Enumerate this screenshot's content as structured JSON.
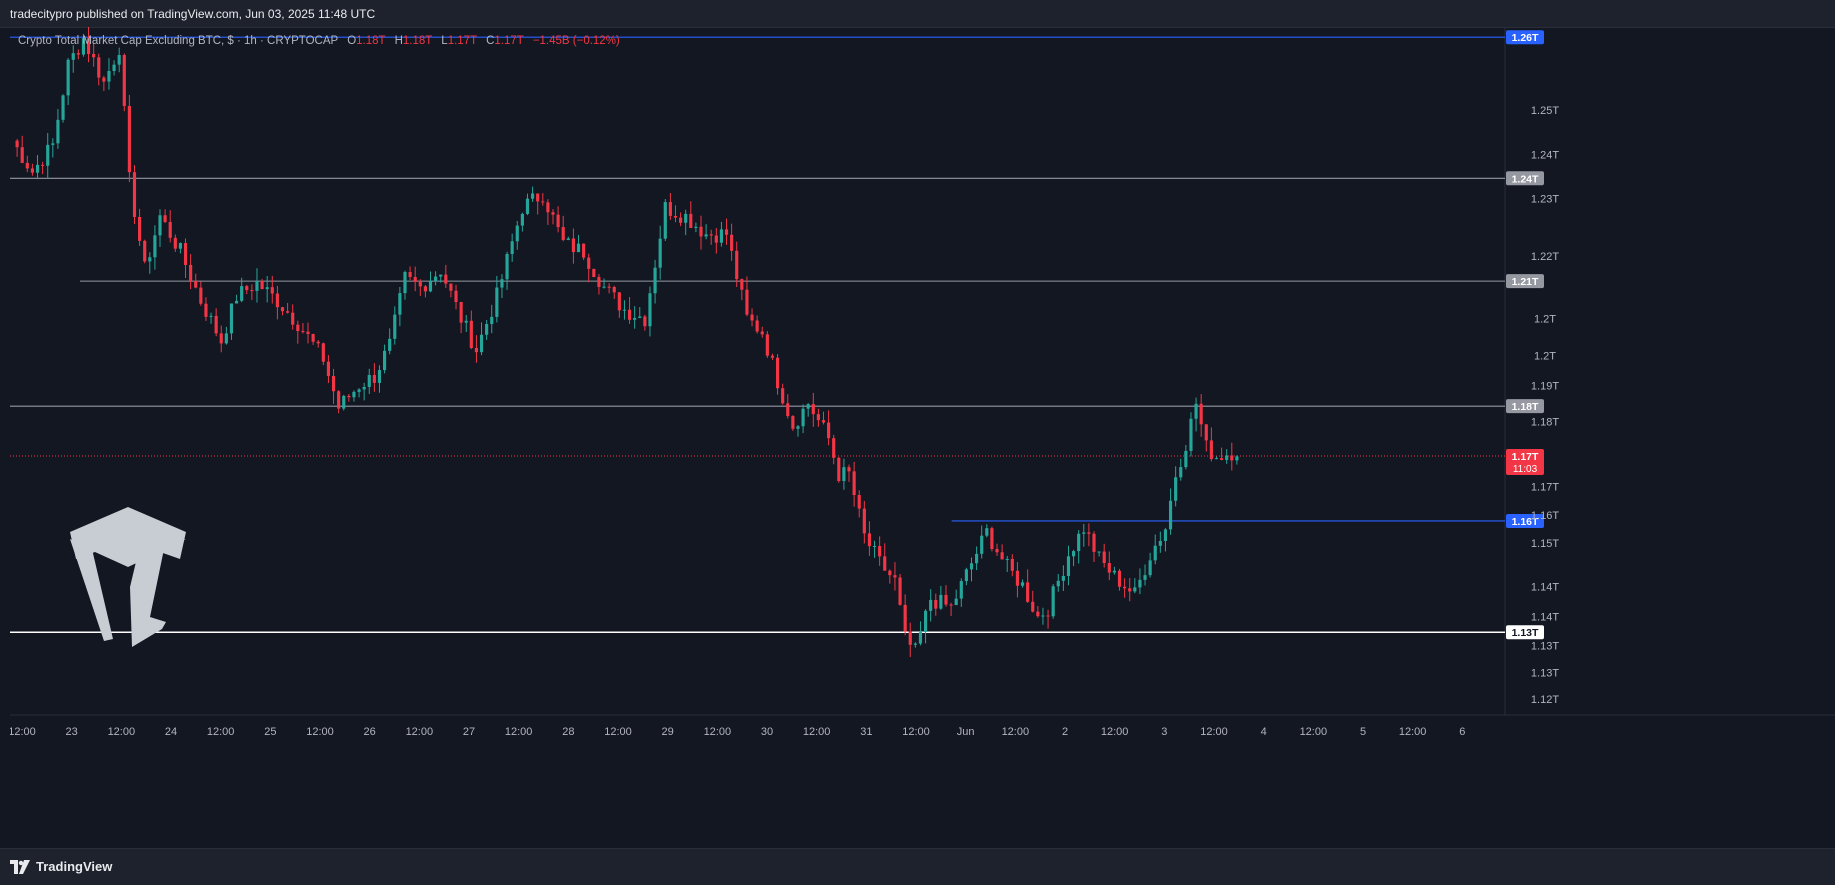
{
  "header": {
    "published": "tradecitypro published on TradingView.com, Jun 03, 2025 11:48 UTC"
  },
  "legend": {
    "symbol": "Crypto Total Market Cap Excluding BTC, $ · 1h · CRYPTOCAP",
    "o_label": "O",
    "o": "1.18T",
    "h_label": "H",
    "h": "1.18T",
    "l_label": "L",
    "l": "1.17T",
    "c_label": "C",
    "c": "1.17T",
    "change": "−1.45B (−0.12%)"
  },
  "footer": {
    "brand": "TradingView"
  },
  "colors": {
    "background": "#131722",
    "up": "#26a69a",
    "down": "#f23645",
    "blue_line": "#2962ff",
    "gray_line": "#9598a1",
    "white_line": "#ffffff"
  },
  "chart_data": {
    "type": "candlestick",
    "title": "Crypto Total Market Cap Excluding BTC, $ · 1h · CRYPTOCAP",
    "ylim": [
      1.1195,
      1.2705
    ],
    "y_ticks": [
      {
        "v": 1.2518,
        "label": "1.25T"
      },
      {
        "v": 1.2419,
        "label": "1.24T"
      },
      {
        "v": 1.232,
        "label": "1.23T"
      },
      {
        "v": 1.219,
        "label": "1.22T"
      },
      {
        "v": 1.205,
        "label": "1.2T"
      },
      {
        "v": 1.1967,
        "label": "1.2T"
      },
      {
        "v": 1.19,
        "label": "1.19T"
      },
      {
        "v": 1.1818,
        "label": "1.18T"
      },
      {
        "v": 1.1673,
        "label": "1.17T"
      },
      {
        "v": 1.1608,
        "label": "1.16T"
      },
      {
        "v": 1.1545,
        "label": "1.15T"
      },
      {
        "v": 1.1448,
        "label": "1.14T"
      },
      {
        "v": 1.138,
        "label": "1.14T"
      },
      {
        "v": 1.1315,
        "label": "1.13T"
      },
      {
        "v": 1.1255,
        "label": "1.13T"
      },
      {
        "v": 1.1195,
        "label": "1.12T"
      }
    ],
    "x_ticks": [
      "12:00",
      "23",
      "12:00",
      "24",
      "12:00",
      "25",
      "12:00",
      "26",
      "12:00",
      "27",
      "12:00",
      "28",
      "12:00",
      "29",
      "12:00",
      "30",
      "12:00",
      "31",
      "12:00",
      "Jun",
      "12:00",
      "2",
      "12:00",
      "3",
      "12:00",
      "4",
      "12:00",
      "5",
      "12:00",
      "6"
    ],
    "horizontal_lines": [
      {
        "price": 1.2682,
        "label": "1.26T",
        "color": "#2962ff",
        "start_frac": 0
      },
      {
        "price": 1.2365,
        "label": "1.24T",
        "color": "#9598a1",
        "start_frac": 0
      },
      {
        "price": 1.2134,
        "label": "1.21T",
        "color": "#9598a1",
        "start_frac": 0.047
      },
      {
        "price": 1.1853,
        "label": "1.18T",
        "color": "#9598a1",
        "start_frac": 0
      },
      {
        "price": 1.1595,
        "label": "1.16T",
        "color": "#2962ff",
        "start_frac": 0.632
      },
      {
        "price": 1.1345,
        "label": "1.13T",
        "color": "#ffffff",
        "start_frac": 0
      }
    ],
    "current_price": {
      "price": 1.1741,
      "label": "1.17T",
      "countdown": "11:03",
      "color": "#f23645"
    },
    "path": [
      [
        0,
        1.245
      ],
      [
        4,
        1.238
      ],
      [
        8,
        1.244
      ],
      [
        11,
        1.262
      ],
      [
        14,
        1.268
      ],
      [
        18,
        1.258
      ],
      [
        21,
        1.266
      ],
      [
        23,
        1.236
      ],
      [
        26,
        1.216
      ],
      [
        29,
        1.228
      ],
      [
        33,
        1.22
      ],
      [
        37,
        1.209
      ],
      [
        41,
        1.2
      ],
      [
        44,
        1.21
      ],
      [
        48,
        1.213
      ],
      [
        52,
        1.209
      ],
      [
        56,
        1.204
      ],
      [
        61,
        1.196
      ],
      [
        64,
        1.185
      ],
      [
        68,
        1.19
      ],
      [
        71,
        1.192
      ],
      [
        74,
        1.199
      ],
      [
        77,
        1.214
      ],
      [
        80,
        1.212
      ],
      [
        84,
        1.216
      ],
      [
        88,
        1.205
      ],
      [
        91,
        1.198
      ],
      [
        95,
        1.21
      ],
      [
        100,
        1.23
      ],
      [
        104,
        1.233
      ],
      [
        108,
        1.222
      ],
      [
        112,
        1.22
      ],
      [
        116,
        1.212
      ],
      [
        120,
        1.207
      ],
      [
        124,
        1.205
      ],
      [
        128,
        1.23
      ],
      [
        132,
        1.228
      ],
      [
        136,
        1.224
      ],
      [
        140,
        1.224
      ],
      [
        144,
        1.205
      ],
      [
        147,
        1.202
      ],
      [
        150,
        1.191
      ],
      [
        153,
        1.181
      ],
      [
        156,
        1.186
      ],
      [
        160,
        1.178
      ],
      [
        162,
        1.17
      ],
      [
        164,
        1.17
      ],
      [
        167,
        1.156
      ],
      [
        170,
        1.15
      ],
      [
        173,
        1.146
      ],
      [
        175,
        1.133
      ],
      [
        177,
        1.13
      ],
      [
        180,
        1.142
      ],
      [
        184,
        1.14
      ],
      [
        188,
        1.15
      ],
      [
        191,
        1.157
      ],
      [
        195,
        1.149
      ],
      [
        198,
        1.145
      ],
      [
        201,
        1.138
      ],
      [
        203,
        1.14
      ],
      [
        207,
        1.152
      ],
      [
        210,
        1.158
      ],
      [
        213,
        1.151
      ],
      [
        216,
        1.147
      ],
      [
        220,
        1.143
      ],
      [
        223,
        1.152
      ],
      [
        226,
        1.158
      ],
      [
        228,
        1.17
      ],
      [
        230,
        1.177
      ],
      [
        232,
        1.186
      ],
      [
        234,
        1.176
      ],
      [
        236,
        1.174
      ],
      [
        239,
        1.175
      ],
      [
        240,
        1.174
      ]
    ]
  }
}
